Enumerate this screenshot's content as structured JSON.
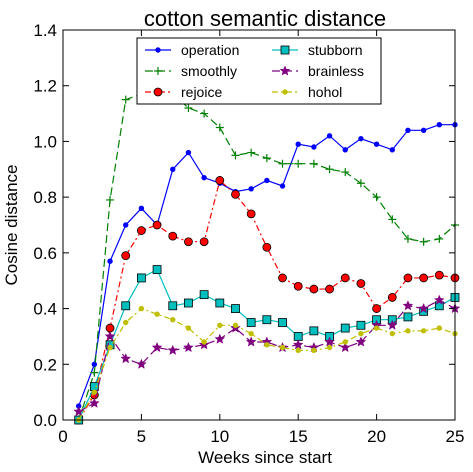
{
  "chart_data": {
    "type": "line",
    "title": "cotton semantic distance",
    "xlabel": "Weeks since start",
    "ylabel": "Cosine distance",
    "xlim": [
      0,
      25
    ],
    "ylim": [
      0.0,
      1.4
    ],
    "xticks": [
      0,
      5,
      10,
      15,
      20,
      25
    ],
    "yticks": [
      0.0,
      0.2,
      0.4,
      0.6,
      0.8,
      1.0,
      1.2,
      1.4
    ],
    "xtick_labels": [
      "0",
      "5",
      "10",
      "15",
      "20",
      "25"
    ],
    "ytick_labels": [
      "0.0",
      "0.2",
      "0.4",
      "0.6",
      "0.8",
      "1.0",
      "1.2",
      "1.4"
    ],
    "grid": false,
    "legend_position": "top-center",
    "x": [
      1,
      2,
      3,
      4,
      5,
      6,
      7,
      8,
      9,
      10,
      11,
      12,
      13,
      14,
      15,
      16,
      17,
      18,
      19,
      20,
      21,
      22,
      23,
      24,
      25
    ],
    "series": [
      {
        "name": "operation",
        "color": "#0000ff",
        "style": "solid",
        "marker": "dot",
        "values": [
          0.05,
          0.2,
          0.57,
          0.7,
          0.76,
          0.7,
          0.9,
          0.96,
          0.87,
          0.85,
          0.82,
          0.83,
          0.86,
          0.84,
          0.99,
          0.98,
          1.02,
          0.97,
          1.01,
          0.99,
          0.97,
          1.04,
          1.04,
          1.06,
          1.06
        ]
      },
      {
        "name": "smoothly",
        "color": "#008000",
        "style": "dashed",
        "marker": "plus",
        "values": [
          0.0,
          0.17,
          0.79,
          1.15,
          1.17,
          1.18,
          1.17,
          1.12,
          1.1,
          1.05,
          0.95,
          0.96,
          0.94,
          0.92,
          0.92,
          0.92,
          0.9,
          0.89,
          0.85,
          0.8,
          0.72,
          0.65,
          0.64,
          0.65,
          0.7
        ]
      },
      {
        "name": "rejoice",
        "color": "#ff0000",
        "style": "dashdot",
        "marker": "circle",
        "values": [
          0.0,
          0.09,
          0.33,
          0.59,
          0.68,
          0.7,
          0.66,
          0.64,
          0.64,
          0.86,
          0.81,
          0.74,
          0.62,
          0.51,
          0.48,
          0.47,
          0.47,
          0.51,
          0.49,
          0.4,
          0.44,
          0.51,
          0.51,
          0.52,
          0.51
        ]
      },
      {
        "name": "stubborn",
        "color": "#00bfbf",
        "style": "solid",
        "marker": "square",
        "values": [
          0.0,
          0.12,
          0.27,
          0.41,
          0.51,
          0.54,
          0.41,
          0.42,
          0.45,
          0.42,
          0.4,
          0.35,
          0.36,
          0.35,
          0.3,
          0.32,
          0.3,
          0.33,
          0.34,
          0.36,
          0.36,
          0.37,
          0.39,
          0.41,
          0.44
        ]
      },
      {
        "name": "brainless",
        "color": "#800080",
        "style": "dashed",
        "marker": "star",
        "values": [
          0.03,
          0.06,
          0.3,
          0.22,
          0.2,
          0.26,
          0.25,
          0.26,
          0.27,
          0.29,
          0.33,
          0.28,
          0.28,
          0.26,
          0.27,
          0.26,
          0.28,
          0.26,
          0.28,
          0.34,
          0.34,
          0.41,
          0.4,
          0.43,
          0.4
        ]
      },
      {
        "name": "hohol",
        "color": "#bfbf00",
        "style": "dashdot",
        "marker": "dot",
        "values": [
          0.0,
          0.1,
          0.26,
          0.35,
          0.4,
          0.38,
          0.36,
          0.33,
          0.28,
          0.34,
          0.34,
          0.31,
          0.27,
          0.26,
          0.25,
          0.25,
          0.26,
          0.28,
          0.31,
          0.33,
          0.31,
          0.32,
          0.32,
          0.33,
          0.31
        ]
      }
    ]
  }
}
